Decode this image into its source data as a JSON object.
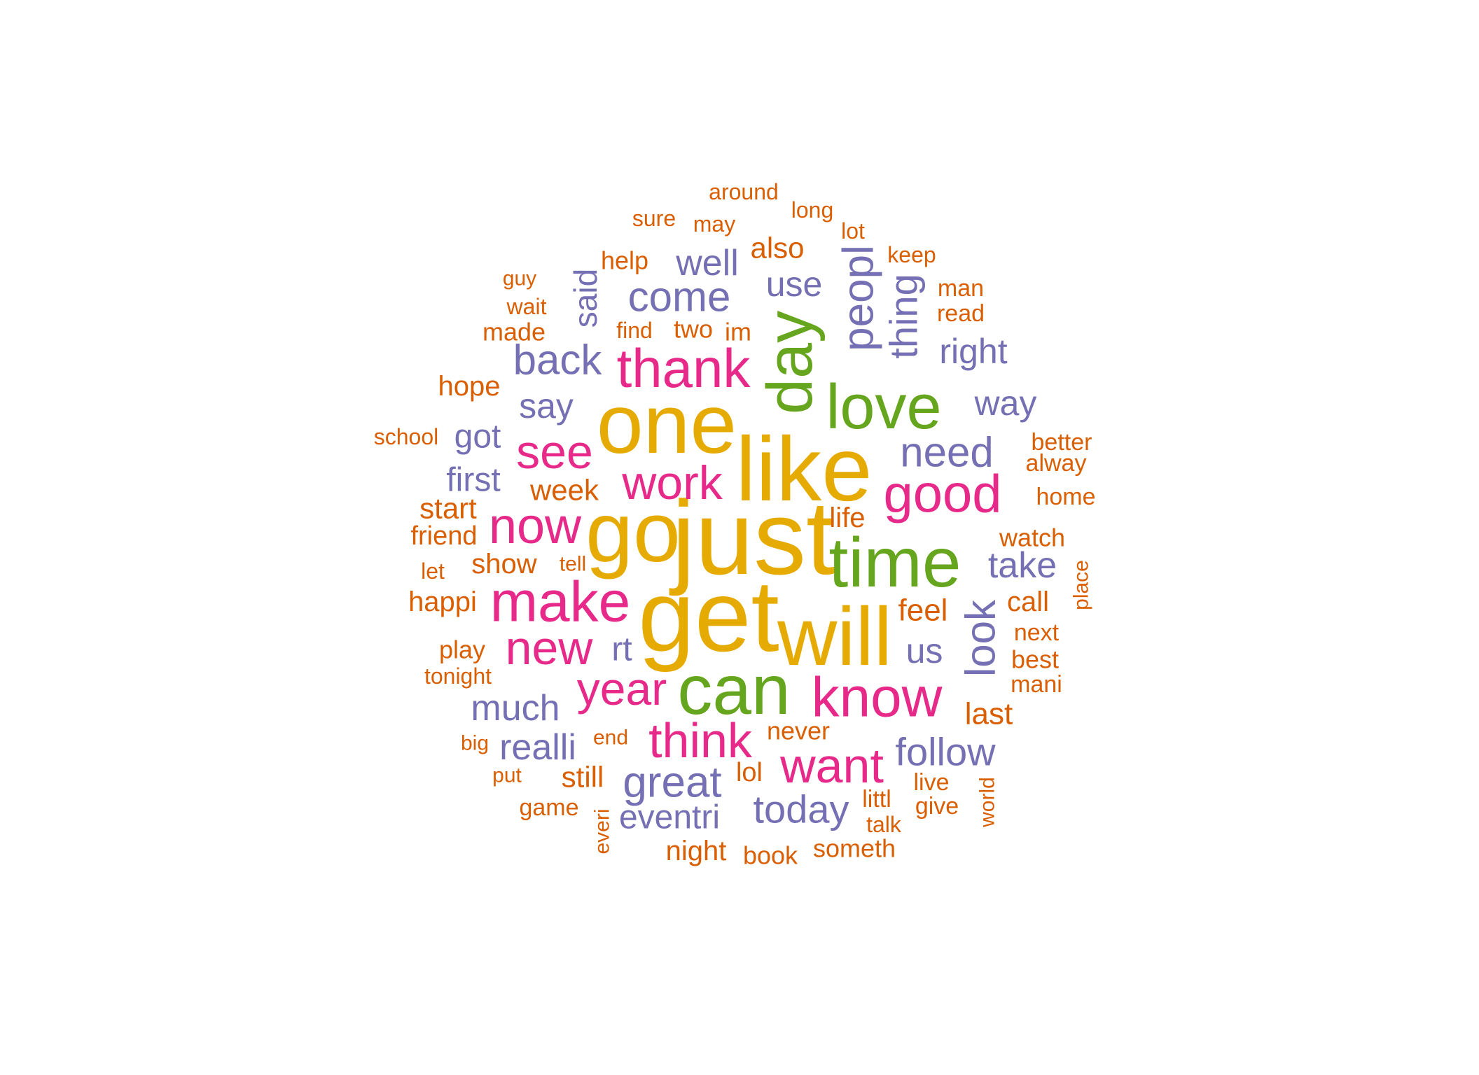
{
  "palette": {
    "orange": "#d95f02",
    "purple": "#7570b3",
    "pink": "#e7298a",
    "green": "#66a61e",
    "gold": "#e6ab02"
  },
  "words": [
    {
      "text": "just",
      "color": "gold",
      "weight": 1.0
    },
    {
      "text": "get",
      "color": "gold",
      "weight": 1.0
    },
    {
      "text": "like",
      "color": "gold",
      "weight": 0.95
    },
    {
      "text": "one",
      "color": "gold",
      "weight": 0.92
    },
    {
      "text": "go",
      "color": "gold",
      "weight": 0.9
    },
    {
      "text": "will",
      "color": "gold",
      "weight": 0.9
    },
    {
      "text": "time",
      "color": "green",
      "weight": 0.78
    },
    {
      "text": "can",
      "color": "green",
      "weight": 0.78
    },
    {
      "text": "love",
      "color": "green",
      "weight": 0.74
    },
    {
      "text": "day",
      "color": "green",
      "weight": 0.74
    },
    {
      "text": "make",
      "color": "pink",
      "weight": 0.64
    },
    {
      "text": "know",
      "color": "pink",
      "weight": 0.62
    },
    {
      "text": "thank",
      "color": "pink",
      "weight": 0.62
    },
    {
      "text": "good",
      "color": "pink",
      "weight": 0.6
    },
    {
      "text": "now",
      "color": "pink",
      "weight": 0.56
    },
    {
      "text": "want",
      "color": "pink",
      "weight": 0.56
    },
    {
      "text": "think",
      "color": "pink",
      "weight": 0.56
    },
    {
      "text": "see",
      "color": "pink",
      "weight": 0.56
    },
    {
      "text": "work",
      "color": "pink",
      "weight": 0.54
    },
    {
      "text": "new",
      "color": "pink",
      "weight": 0.54
    },
    {
      "text": "year",
      "color": "pink",
      "weight": 0.52
    },
    {
      "text": "look",
      "color": "purple",
      "weight": 0.48
    },
    {
      "text": "great",
      "color": "purple",
      "weight": 0.48
    },
    {
      "text": "peopl",
      "color": "purple",
      "weight": 0.48
    },
    {
      "text": "need",
      "color": "purple",
      "weight": 0.46
    },
    {
      "text": "come",
      "color": "purple",
      "weight": 0.46
    },
    {
      "text": "back",
      "color": "purple",
      "weight": 0.46
    },
    {
      "text": "follow",
      "color": "purple",
      "weight": 0.44
    },
    {
      "text": "today",
      "color": "purple",
      "weight": 0.44
    },
    {
      "text": "thing",
      "color": "purple",
      "weight": 0.44
    },
    {
      "text": "much",
      "color": "purple",
      "weight": 0.42
    },
    {
      "text": "realli",
      "color": "purple",
      "weight": 0.42
    },
    {
      "text": "eventri",
      "color": "purple",
      "weight": 0.4
    },
    {
      "text": "well",
      "color": "purple",
      "weight": 0.4
    },
    {
      "text": "take",
      "color": "purple",
      "weight": 0.4
    },
    {
      "text": "right",
      "color": "purple",
      "weight": 0.38
    },
    {
      "text": "use",
      "color": "purple",
      "weight": 0.38
    },
    {
      "text": "way",
      "color": "purple",
      "weight": 0.38
    },
    {
      "text": "say",
      "color": "purple",
      "weight": 0.38
    },
    {
      "text": "first",
      "color": "purple",
      "weight": 0.38
    },
    {
      "text": "got",
      "color": "purple",
      "weight": 0.36
    },
    {
      "text": "said",
      "color": "purple",
      "weight": 0.36
    },
    {
      "text": "us",
      "color": "purple",
      "weight": 0.36
    },
    {
      "text": "rt",
      "color": "purple",
      "weight": 0.36
    },
    {
      "text": "feel",
      "color": "orange",
      "weight": 0.34
    },
    {
      "text": "last",
      "color": "orange",
      "weight": 0.34
    },
    {
      "text": "also",
      "color": "orange",
      "weight": 0.32
    },
    {
      "text": "week",
      "color": "orange",
      "weight": 0.32
    },
    {
      "text": "start",
      "color": "orange",
      "weight": 0.32
    },
    {
      "text": "still",
      "color": "orange",
      "weight": 0.32
    },
    {
      "text": "call",
      "color": "orange",
      "weight": 0.3
    },
    {
      "text": "night",
      "color": "orange",
      "weight": 0.3
    },
    {
      "text": "show",
      "color": "orange",
      "weight": 0.3
    },
    {
      "text": "happi",
      "color": "orange",
      "weight": 0.3
    },
    {
      "text": "hope",
      "color": "orange",
      "weight": 0.3
    },
    {
      "text": "life",
      "color": "orange",
      "weight": 0.3
    },
    {
      "text": "friend",
      "color": "orange",
      "weight": 0.28
    },
    {
      "text": "lol",
      "color": "orange",
      "weight": 0.28
    },
    {
      "text": "made",
      "color": "orange",
      "weight": 0.28
    },
    {
      "text": "two",
      "color": "orange",
      "weight": 0.28
    },
    {
      "text": "im",
      "color": "orange",
      "weight": 0.28
    },
    {
      "text": "best",
      "color": "orange",
      "weight": 0.28
    },
    {
      "text": "watch",
      "color": "orange",
      "weight": 0.28
    },
    {
      "text": "help",
      "color": "orange",
      "weight": 0.28
    },
    {
      "text": "play",
      "color": "orange",
      "weight": 0.28
    },
    {
      "text": "never",
      "color": "orange",
      "weight": 0.28
    },
    {
      "text": "book",
      "color": "orange",
      "weight": 0.28
    },
    {
      "text": "someth",
      "color": "orange",
      "weight": 0.28
    },
    {
      "text": "next",
      "color": "orange",
      "weight": 0.26
    },
    {
      "text": "littl",
      "color": "orange",
      "weight": 0.26
    },
    {
      "text": "live",
      "color": "orange",
      "weight": 0.26
    },
    {
      "text": "give",
      "color": "orange",
      "weight": 0.26
    },
    {
      "text": "game",
      "color": "orange",
      "weight": 0.26
    },
    {
      "text": "read",
      "color": "orange",
      "weight": 0.26
    },
    {
      "text": "man",
      "color": "orange",
      "weight": 0.26
    },
    {
      "text": "mani",
      "color": "orange",
      "weight": 0.26
    },
    {
      "text": "alway",
      "color": "orange",
      "weight": 0.26
    },
    {
      "text": "home",
      "color": "orange",
      "weight": 0.26
    },
    {
      "text": "better",
      "color": "orange",
      "weight": 0.26
    },
    {
      "text": "wait",
      "color": "orange",
      "weight": 0.24
    },
    {
      "text": "tonight",
      "color": "orange",
      "weight": 0.24
    },
    {
      "text": "find",
      "color": "orange",
      "weight": 0.24
    },
    {
      "text": "may",
      "color": "orange",
      "weight": 0.24
    },
    {
      "text": "around",
      "color": "orange",
      "weight": 0.24
    },
    {
      "text": "long",
      "color": "orange",
      "weight": 0.24
    },
    {
      "text": "keep",
      "color": "orange",
      "weight": 0.24
    },
    {
      "text": "sure",
      "color": "orange",
      "weight": 0.24
    },
    {
      "text": "talk",
      "color": "orange",
      "weight": 0.24
    },
    {
      "text": "school",
      "color": "orange",
      "weight": 0.24
    },
    {
      "text": "end",
      "color": "orange",
      "weight": 0.22
    },
    {
      "text": "lot",
      "color": "orange",
      "weight": 0.24
    },
    {
      "text": "guy",
      "color": "orange",
      "weight": 0.22
    },
    {
      "text": "let",
      "color": "orange",
      "weight": 0.24
    },
    {
      "text": "tell",
      "color": "orange",
      "weight": 0.22
    },
    {
      "text": "big",
      "color": "orange",
      "weight": 0.22
    },
    {
      "text": "put",
      "color": "orange",
      "weight": 0.22
    },
    {
      "text": "everi",
      "color": "orange",
      "weight": 0.22
    },
    {
      "text": "world",
      "color": "orange",
      "weight": 0.22
    },
    {
      "text": "place",
      "color": "orange",
      "weight": 0.22
    }
  ]
}
